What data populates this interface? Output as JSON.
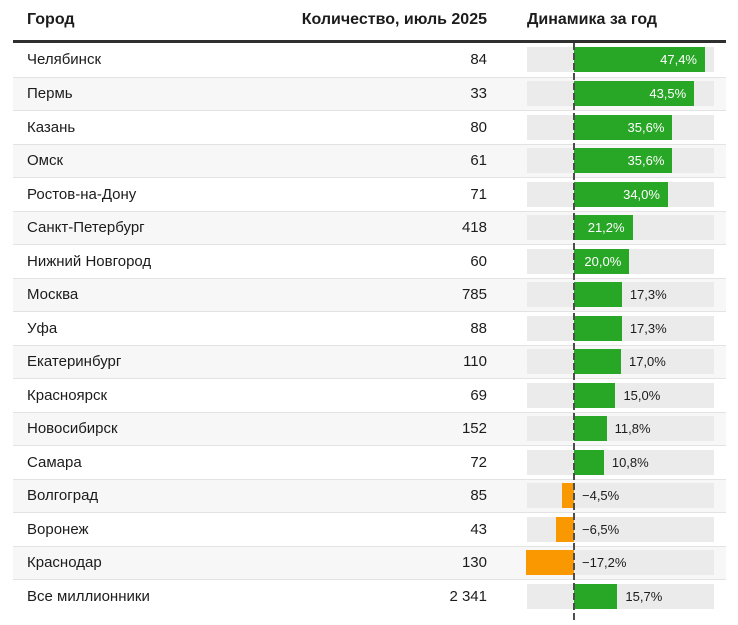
{
  "table": {
    "columns": {
      "city": "Город",
      "count": "Количество, июль 2025",
      "dynamics": "Динамика за год"
    },
    "rows": [
      {
        "city": "Челябинск",
        "count": "84",
        "change": 47.4,
        "change_label": "47,4%"
      },
      {
        "city": "Пермь",
        "count": "33",
        "change": 43.5,
        "change_label": "43,5%"
      },
      {
        "city": "Казань",
        "count": "80",
        "change": 35.6,
        "change_label": "35,6%"
      },
      {
        "city": "Омск",
        "count": "61",
        "change": 35.6,
        "change_label": "35,6%"
      },
      {
        "city": "Ростов-на-Дону",
        "count": "71",
        "change": 34.0,
        "change_label": "34,0%"
      },
      {
        "city": "Санкт-Петербург",
        "count": "418",
        "change": 21.2,
        "change_label": "21,2%"
      },
      {
        "city": "Нижний Новгород",
        "count": "60",
        "change": 20.0,
        "change_label": "20,0%"
      },
      {
        "city": "Москва",
        "count": "785",
        "change": 17.3,
        "change_label": "17,3%"
      },
      {
        "city": "Уфа",
        "count": "88",
        "change": 17.3,
        "change_label": "17,3%"
      },
      {
        "city": "Екатеринбург",
        "count": "110",
        "change": 17.0,
        "change_label": "17,0%"
      },
      {
        "city": "Красноярск",
        "count": "69",
        "change": 15.0,
        "change_label": "15,0%"
      },
      {
        "city": "Новосибирск",
        "count": "152",
        "change": 11.8,
        "change_label": "11,8%"
      },
      {
        "city": "Самара",
        "count": "72",
        "change": 10.8,
        "change_label": "10,8%"
      },
      {
        "city": "Волгоград",
        "count": "85",
        "change": -4.5,
        "change_label": "−4,5%"
      },
      {
        "city": "Воронеж",
        "count": "43",
        "change": -6.5,
        "change_label": "−6,5%"
      },
      {
        "city": "Краснодар",
        "count": "130",
        "change": -17.2,
        "change_label": "−17,2%"
      },
      {
        "city": "Все миллионники",
        "count": "2 341",
        "change": 15.7,
        "change_label": "15,7%"
      }
    ]
  },
  "colors": {
    "positive_bar": "#28A726",
    "negative_bar": "#F99800",
    "bar_track": "#EBEBEB",
    "zebra_row": "#F7F7F7",
    "header_rule": "#2F2F2F",
    "baseline": "#4D4D4D"
  },
  "chart_data": {
    "type": "bar",
    "orientation": "horizontal",
    "title": "",
    "xlabel": "Динамика за год, %",
    "ylabel": "Город",
    "xlim": [
      -17.2,
      50.6
    ],
    "grid": false,
    "legend_position": "none",
    "categories": [
      "Челябинск",
      "Пермь",
      "Казань",
      "Омск",
      "Ростов-на-Дону",
      "Санкт-Петербург",
      "Нижний Новгород",
      "Москва",
      "Уфа",
      "Екатеринбург",
      "Красноярск",
      "Новосибирск",
      "Самара",
      "Волгоград",
      "Воронеж",
      "Краснодар",
      "Все миллионники"
    ],
    "series": [
      {
        "name": "Количество, июль 2025",
        "values": [
          84,
          33,
          80,
          61,
          71,
          418,
          60,
          785,
          88,
          110,
          69,
          152,
          72,
          85,
          43,
          130,
          2341
        ]
      },
      {
        "name": "Динамика за год, %",
        "values": [
          47.4,
          43.5,
          35.6,
          35.6,
          34.0,
          21.2,
          20.0,
          17.3,
          17.3,
          17.0,
          15.0,
          11.8,
          10.8,
          -4.5,
          -6.5,
          -17.2,
          15.7
        ]
      }
    ]
  }
}
